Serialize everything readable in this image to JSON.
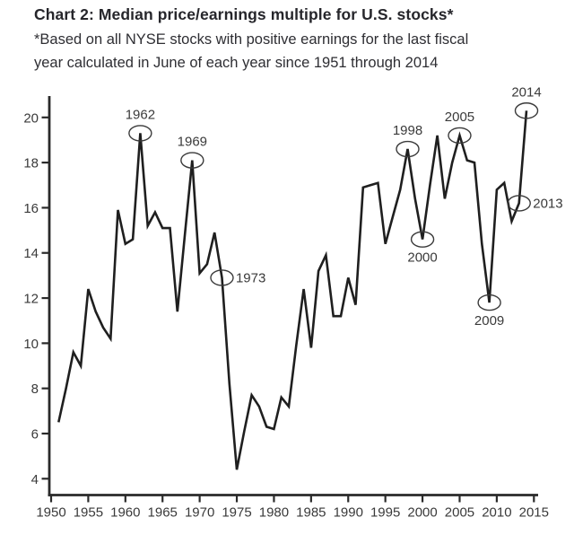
{
  "header": {
    "title": "Chart 2: Median price/earnings multiple for U.S. stocks*",
    "subtitle_line1": "*Based on all NYSE stocks with positive earnings for the last fiscal",
    "subtitle_line2": "year calculated in June of each year since 1951 through 2014"
  },
  "colors": {
    "background": "#ffffff",
    "line": "#1f1f1f",
    "axis": "#2a2a2a",
    "tick_text": "#3a3a3a",
    "annotation": "#3a3a3a"
  },
  "chart_data": {
    "type": "line",
    "title": "Chart 2: Median price/earnings multiple for U.S. stocks*",
    "subtitle": "*Based on all NYSE stocks with positive earnings for the last fiscal year calculated in June of each year since 1951 through 2014",
    "xlabel": "",
    "ylabel": "",
    "grid": false,
    "legend": "none",
    "ylim": [
      4,
      20
    ],
    "xlim": [
      1950,
      2015
    ],
    "y_ticks": [
      4,
      6,
      8,
      10,
      12,
      14,
      16,
      18,
      20
    ],
    "x_ticks": [
      1950,
      1955,
      1960,
      1965,
      1970,
      1975,
      1980,
      1985,
      1990,
      1995,
      2000,
      2005,
      2010,
      2015
    ],
    "x": [
      1951,
      1952,
      1953,
      1954,
      1955,
      1956,
      1957,
      1958,
      1959,
      1960,
      1961,
      1962,
      1963,
      1964,
      1965,
      1966,
      1967,
      1968,
      1969,
      1970,
      1971,
      1972,
      1973,
      1974,
      1975,
      1976,
      1977,
      1978,
      1979,
      1980,
      1981,
      1982,
      1983,
      1984,
      1985,
      1986,
      1987,
      1988,
      1989,
      1990,
      1991,
      1992,
      1993,
      1994,
      1995,
      1996,
      1997,
      1998,
      1999,
      2000,
      2001,
      2002,
      2003,
      2004,
      2005,
      2006,
      2007,
      2008,
      2009,
      2010,
      2011,
      2012,
      2013,
      2014
    ],
    "values": [
      6.5,
      8.0,
      9.6,
      9.0,
      12.4,
      11.4,
      10.7,
      10.2,
      15.9,
      14.4,
      14.6,
      19.3,
      15.2,
      15.8,
      15.1,
      15.1,
      11.4,
      14.8,
      18.1,
      13.1,
      13.5,
      14.9,
      12.9,
      8.2,
      4.4,
      6.1,
      7.7,
      7.2,
      6.3,
      6.2,
      7.6,
      7.2,
      9.9,
      12.4,
      9.8,
      13.2,
      13.9,
      11.2,
      11.2,
      12.9,
      11.7,
      16.9,
      17.0,
      17.1,
      14.4,
      15.6,
      16.8,
      18.6,
      16.4,
      14.6,
      17.0,
      19.2,
      16.4,
      18.0,
      19.2,
      18.1,
      18.0,
      14.4,
      11.8,
      16.8,
      17.1,
      15.4,
      16.2,
      20.3
    ],
    "annotations": [
      {
        "label": "1962",
        "year": 1962,
        "value": 19.3,
        "placement": "above"
      },
      {
        "label": "1969",
        "year": 1969,
        "value": 18.1,
        "placement": "above"
      },
      {
        "label": "1973",
        "year": 1973,
        "value": 12.9,
        "placement": "right"
      },
      {
        "label": "1998",
        "year": 1998,
        "value": 18.6,
        "placement": "above"
      },
      {
        "label": "2000",
        "year": 2000,
        "value": 14.6,
        "placement": "below"
      },
      {
        "label": "2005",
        "year": 2005,
        "value": 19.2,
        "placement": "above"
      },
      {
        "label": "2009",
        "year": 2009,
        "value": 11.8,
        "placement": "below"
      },
      {
        "label": "2013",
        "year": 2013,
        "value": 16.2,
        "placement": "right"
      },
      {
        "label": "2014",
        "year": 2014,
        "value": 20.3,
        "placement": "above"
      }
    ]
  }
}
